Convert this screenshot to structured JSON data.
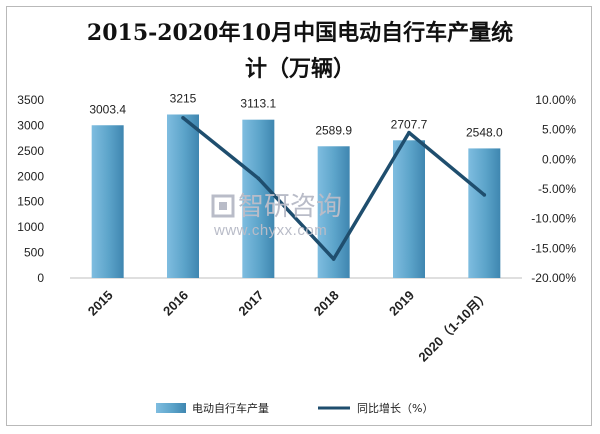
{
  "chart_data": {
    "type": "bar",
    "title_line1": "2015-2020年10月中国电动自行车产量统",
    "title_line2": "计（万辆）",
    "categories": [
      "2015",
      "2016",
      "2017",
      "2018",
      "2019",
      "2020（1-10月）"
    ],
    "series": [
      {
        "name": "电动自行车产量",
        "type": "bar",
        "axis": "left",
        "values": [
          3003.4,
          3215,
          3113.1,
          2589.9,
          2707.7,
          2548.0
        ],
        "labels": [
          "3003.4",
          "3215",
          "3113.1",
          "2589.9",
          "2707.7",
          "2548.0"
        ],
        "color": "#5ba3c9"
      },
      {
        "name": "同比增长（%）",
        "type": "line",
        "axis": "right",
        "values": [
          null,
          7.0,
          -3.2,
          -16.8,
          4.5,
          -6.0
        ],
        "color": "#1f4e6e"
      }
    ],
    "y_left": {
      "ticks": [
        "0",
        "500",
        "1000",
        "1500",
        "2000",
        "2500",
        "3000",
        "3500"
      ],
      "min": 0,
      "max": 3500
    },
    "y_right": {
      "ticks": [
        "10.00%",
        "5.00%",
        "0.00%",
        "-5.00%",
        "-10.00%",
        "-15.00%",
        "-20.00%"
      ],
      "min": -20,
      "max": 10
    },
    "legend_position": "bottom"
  },
  "watermark": {
    "text": "智研咨询",
    "url": "www.chyxx.com"
  }
}
